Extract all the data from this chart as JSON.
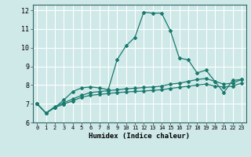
{
  "xlabel": "Humidex (Indice chaleur)",
  "bg_color": "#cfe8e8",
  "grid_color": "#ffffff",
  "line_color": "#1a7a6e",
  "xlim": [
    -0.5,
    23.5
  ],
  "ylim": [
    6,
    12.3
  ],
  "yticks": [
    6,
    7,
    8,
    9,
    10,
    11,
    12
  ],
  "xticks": [
    0,
    1,
    2,
    3,
    4,
    5,
    6,
    7,
    8,
    9,
    10,
    11,
    12,
    13,
    14,
    15,
    16,
    17,
    18,
    19,
    20,
    21,
    22,
    23
  ],
  "line1_x": [
    0,
    1,
    2,
    3,
    4,
    5,
    6,
    7,
    8,
    9,
    10,
    11,
    12,
    13,
    14,
    15,
    16,
    17,
    18,
    19,
    20,
    21,
    22,
    23
  ],
  "line1_y": [
    7.0,
    6.5,
    6.8,
    7.2,
    7.65,
    7.85,
    7.9,
    7.85,
    7.75,
    9.35,
    10.1,
    10.55,
    11.9,
    11.85,
    11.85,
    10.9,
    9.45,
    9.35,
    8.65,
    8.8,
    8.2,
    7.6,
    8.25,
    8.3
  ],
  "line2_x": [
    0,
    1,
    2,
    3,
    4,
    5,
    6,
    7,
    8,
    9,
    10,
    11,
    12,
    13,
    14,
    15,
    16,
    17,
    18,
    19,
    20,
    21,
    22,
    23
  ],
  "line2_y": [
    7.0,
    6.5,
    6.85,
    7.05,
    7.25,
    7.45,
    7.6,
    7.65,
    7.7,
    7.75,
    7.8,
    7.83,
    7.87,
    7.9,
    7.95,
    8.05,
    8.1,
    8.2,
    8.3,
    8.35,
    8.2,
    8.05,
    8.1,
    8.3
  ],
  "line3_x": [
    0,
    1,
    2,
    3,
    4,
    5,
    6,
    7,
    8,
    9,
    10,
    11,
    12,
    13,
    14,
    15,
    16,
    17,
    18,
    19,
    20,
    21,
    22,
    23
  ],
  "line3_y": [
    7.0,
    6.5,
    6.8,
    6.98,
    7.15,
    7.35,
    7.45,
    7.5,
    7.55,
    7.6,
    7.63,
    7.66,
    7.68,
    7.72,
    7.75,
    7.82,
    7.88,
    7.94,
    8.0,
    8.05,
    7.95,
    7.9,
    7.95,
    8.1
  ]
}
